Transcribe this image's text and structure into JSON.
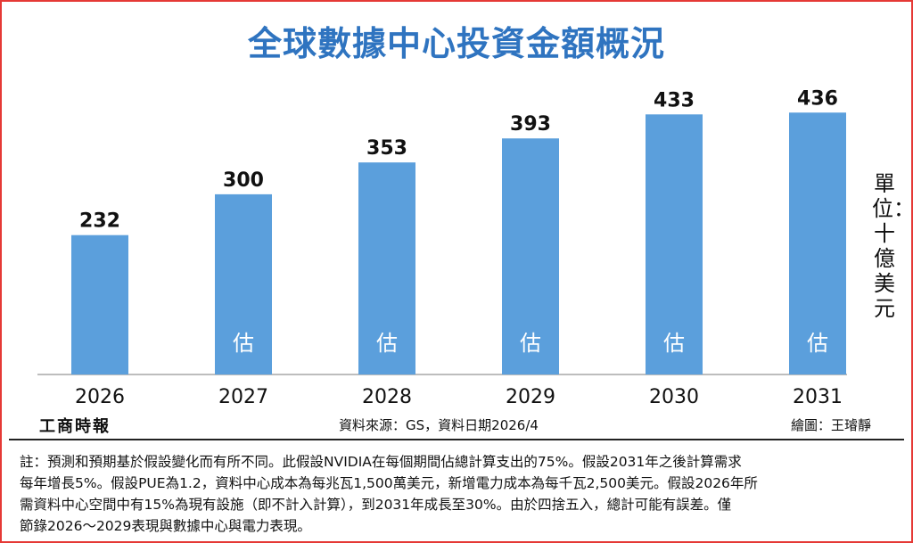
{
  "title": "全球數據中心投資金額概況",
  "unit_label": "單位：十億美元",
  "publisher": "工商時報",
  "source": "資料來源：GS，資料日期2026/4",
  "credit": "繪圖：王璿靜",
  "notes": [
    "註：預測和預期基於假設變化而有所不同。此假設NVIDIA在每個期間佔總計算支出的75%。假設2031年之後計算需求",
    "每年增長5%。假設PUE為1.2，資料中心成本為每兆瓦1,500萬美元，新增電力成本為每千瓦2,500美元。假設2026年所",
    "需資料中心空間中有15%為現有設施（即不計入計算），到2031年成長至30%。由於四捨五入，總計可能有誤差。僅",
    "節錄2026～2029表現與數據中心與電力表現。"
  ],
  "colors": {
    "bar": "#5b9fdc",
    "title": "#2f74c0",
    "baseline": "#bdbdbd",
    "frame": "#e53935"
  },
  "chart_data": {
    "type": "bar",
    "categories": [
      "2026",
      "2027",
      "2028",
      "2029",
      "2030",
      "2031"
    ],
    "values": [
      232,
      300,
      353,
      393,
      433,
      436
    ],
    "data_labels": [
      "232",
      "300",
      "353",
      "393",
      "433",
      "436"
    ],
    "estimate_marks": [
      "",
      "估",
      "估",
      "估",
      "估",
      "估"
    ],
    "title": "全球數據中心投資金額概況",
    "ylabel": "單位：十億美元",
    "ylim": [
      0,
      475
    ],
    "grid": false,
    "legend": "none"
  }
}
